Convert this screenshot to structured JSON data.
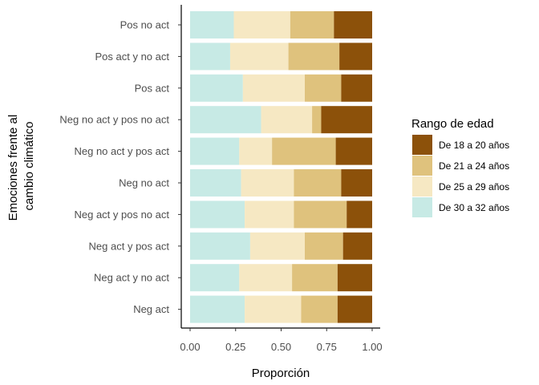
{
  "chart_data": {
    "type": "bar",
    "orientation": "horizontal",
    "stacked": true,
    "xlabel": "Proporción",
    "ylabel_lines": [
      "Emociones frente al",
      "cambio climático"
    ],
    "xlim": [
      0,
      1
    ],
    "x_ticks": [
      0,
      0.25,
      0.5,
      0.75,
      1
    ],
    "x_tick_labels": [
      "0.00",
      "0.25",
      "0.50",
      "0.75",
      "1.00"
    ],
    "grid": false,
    "legend_position": "right",
    "legend_title": "Rango de edad",
    "categories": [
      "Pos no act",
      "Pos act y no act",
      "Pos act",
      "Neg no act y pos no act",
      "Neg no act y pos act",
      "Neg no act",
      "Neg act y pos no act",
      "Neg act y pos act",
      "Neg act y no act",
      "Neg act"
    ],
    "series": [
      {
        "name": "De 30 a 32 años",
        "color": "#c7eae5",
        "values": [
          0.24,
          0.22,
          0.29,
          0.39,
          0.27,
          0.28,
          0.3,
          0.33,
          0.27,
          0.3
        ]
      },
      {
        "name": "De 25 a 29 años",
        "color": "#f6e8c3",
        "values": [
          0.31,
          0.32,
          0.34,
          0.28,
          0.18,
          0.29,
          0.27,
          0.3,
          0.29,
          0.31
        ]
      },
      {
        "name": "De 21 a 24 años",
        "color": "#dfc27d",
        "values": [
          0.24,
          0.28,
          0.2,
          0.05,
          0.35,
          0.26,
          0.29,
          0.21,
          0.25,
          0.2
        ]
      },
      {
        "name": "De 18 a 20 años",
        "color": "#8c510a",
        "values": [
          0.21,
          0.18,
          0.17,
          0.28,
          0.2,
          0.17,
          0.14,
          0.16,
          0.19,
          0.19
        ]
      }
    ],
    "legend_order": [
      "De 18 a 20 años",
      "De 21 a 24 años",
      "De 25 a 29 años",
      "De 30 a 32 años"
    ]
  }
}
